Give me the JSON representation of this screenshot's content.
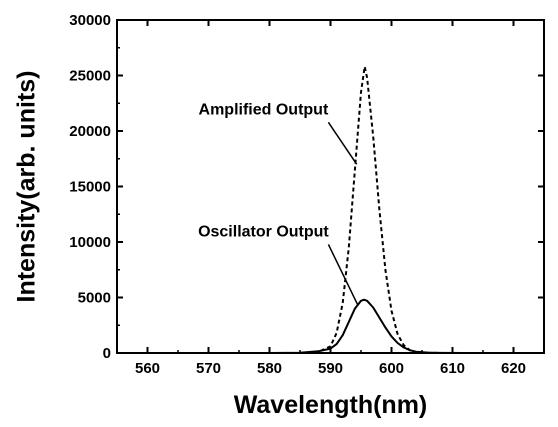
{
  "chart_data": {
    "type": "line",
    "title": "",
    "xlabel": "Wavelength(nm)",
    "ylabel": "Intensity(arb. units)",
    "xlim": [
      555,
      625
    ],
    "ylim": [
      0,
      30000
    ],
    "xticks": [
      560,
      570,
      580,
      590,
      600,
      610,
      620
    ],
    "yticks": [
      0,
      5000,
      10000,
      15000,
      20000,
      25000,
      30000
    ],
    "grid": false,
    "series": [
      {
        "name": "Amplified Output",
        "style": "dashed",
        "color": "#000000",
        "x": [
          585,
          588,
          590,
          591,
          592,
          593,
          594,
          595,
          595.6,
          596,
          597,
          598,
          599,
          600,
          601,
          602,
          603,
          604,
          606,
          608,
          610
        ],
        "y": [
          0,
          100,
          600,
          1800,
          4500,
          9500,
          16500,
          23500,
          25800,
          24800,
          19500,
          13000,
          7500,
          3800,
          1700,
          700,
          250,
          80,
          20,
          0,
          0
        ]
      },
      {
        "name": "Oscillator Output",
        "style": "solid",
        "color": "#000000",
        "x": [
          555,
          580,
          585,
          588,
          590,
          591,
          592,
          593,
          594,
          595,
          595.5,
          596,
          597,
          598,
          599,
          600,
          601,
          602,
          603,
          604,
          606,
          608,
          612,
          625
        ],
        "y": [
          0,
          0,
          30,
          150,
          400,
          800,
          1600,
          2800,
          4000,
          4700,
          4800,
          4700,
          4100,
          3200,
          2300,
          1500,
          900,
          500,
          250,
          120,
          40,
          10,
          0,
          0
        ]
      }
    ],
    "annotations": [
      {
        "text": "Amplified Output",
        "target": [
          594.3,
          17000
        ],
        "label_anchor": [
          579,
          21500
        ]
      },
      {
        "text": "Oscillator Output",
        "target": [
          594.5,
          4300
        ],
        "label_anchor": [
          579,
          10500
        ]
      }
    ]
  }
}
